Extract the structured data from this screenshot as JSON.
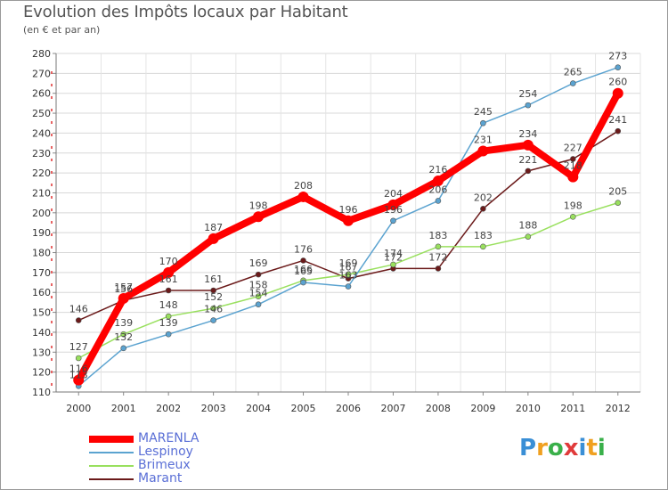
{
  "header": {
    "title": "Evolution des Impôts locaux par Habitant",
    "subtitle": "(en € et par an)"
  },
  "chart_data": {
    "type": "line",
    "title": "Evolution des Impôts locaux par Habitant",
    "subtitle": "(en € et par an)",
    "xlabel": "",
    "ylabel": "",
    "categories": [
      "2000",
      "2001",
      "2002",
      "2003",
      "2004",
      "2005",
      "2006",
      "2007",
      "2008",
      "2009",
      "2010",
      "2011",
      "2012"
    ],
    "ylim": [
      110,
      280
    ],
    "yticks": [
      110,
      120,
      130,
      140,
      150,
      160,
      170,
      180,
      190,
      200,
      210,
      220,
      230,
      240,
      250,
      260,
      270,
      280
    ],
    "grid": true,
    "legend_position": "bottom-left",
    "series": [
      {
        "name": "MARENLA",
        "color": "#ff0000",
        "values": [
          116,
          157,
          170,
          187,
          198,
          208,
          196,
          204,
          216,
          231,
          234,
          218,
          260
        ]
      },
      {
        "name": "Lespinoy",
        "color": "#5ba3d0",
        "values": [
          113,
          132,
          139,
          146,
          154,
          165,
          163,
          196,
          206,
          245,
          254,
          265,
          273
        ]
      },
      {
        "name": "Brimeux",
        "color": "#99e05e",
        "values": [
          127,
          139,
          148,
          152,
          158,
          166,
          169,
          174,
          183,
          183,
          188,
          198,
          205
        ]
      },
      {
        "name": "Marant",
        "color": "#6b1a1a",
        "values": [
          146,
          156,
          161,
          161,
          169,
          176,
          167,
          172,
          172,
          202,
          221,
          227,
          241
        ]
      }
    ]
  },
  "legend": [
    {
      "label": "MARENLA",
      "color": "#ff0000"
    },
    {
      "label": "Lespinoy",
      "color": "#5ba3d0"
    },
    {
      "label": "Brimeux",
      "color": "#99e05e"
    },
    {
      "label": "Marant",
      "color": "#6b1a1a"
    }
  ],
  "logo": {
    "letters": [
      "P",
      "r",
      "o",
      "x",
      "i",
      "t",
      "i"
    ],
    "colors": [
      "#3a8fd6",
      "#f0a020",
      "#3ab04a",
      "#e03a3a",
      "#3a8fd6",
      "#f0a020",
      "#3ab04a"
    ]
  }
}
